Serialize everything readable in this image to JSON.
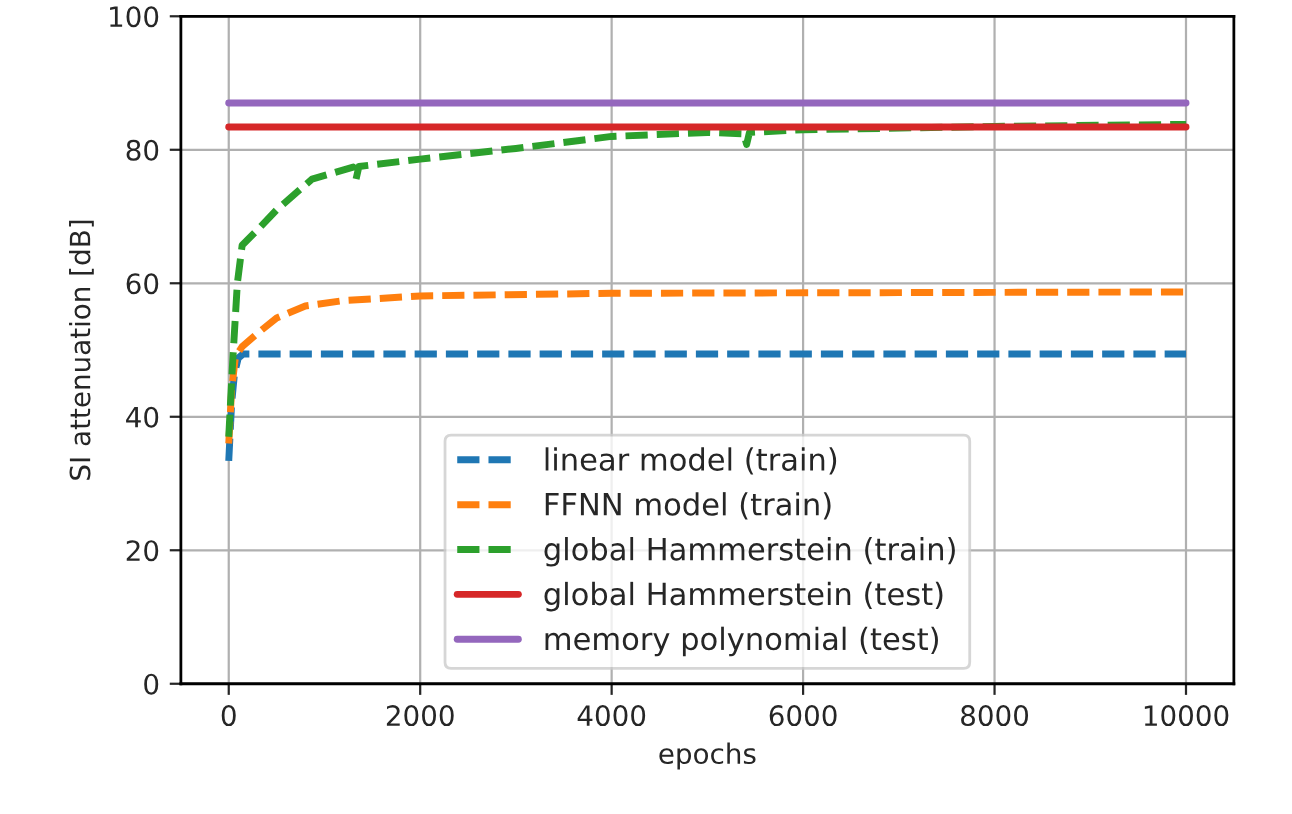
{
  "chart_data": {
    "type": "line",
    "xlabel": "epochs",
    "ylabel": "SI attenuation [dB]",
    "xlim": [
      -500,
      10500
    ],
    "xticks": [
      0,
      2000,
      4000,
      6000,
      8000,
      10000
    ],
    "ylim": [
      0,
      100
    ],
    "yticks": [
      0,
      20,
      40,
      60,
      80,
      100
    ],
    "grid": true,
    "legend": "bottom",
    "series": [
      {
        "name": "linear model (train)",
        "color": "#1f77b4",
        "line_style": "dashed",
        "x": [
          0,
          30,
          60,
          100,
          150,
          500,
          2000,
          6000,
          10000
        ],
        "values": [
          33.4,
          42,
          46.5,
          48.8,
          49.4,
          49.4,
          49.4,
          49.4,
          49.4
        ]
      },
      {
        "name": "FFNN model (train)",
        "color": "#ff7f0e",
        "line_style": "dashed",
        "x": [
          0,
          30,
          70,
          140,
          300,
          500,
          800,
          1200,
          2000,
          4000,
          7000,
          10000
        ],
        "values": [
          36,
          44,
          49,
          50.5,
          52.5,
          54.8,
          56.6,
          57.4,
          58.1,
          58.5,
          58.6,
          58.7
        ]
      },
      {
        "name": "global Hammerstein (train)",
        "color": "#2ca02c",
        "line_style": "dashed",
        "x": [
          0,
          40,
          90,
          140,
          300,
          500,
          870,
          1300,
          1330,
          1360,
          2000,
          3000,
          4000,
          5000,
          5380,
          5410,
          5440,
          6000,
          8000,
          10000
        ],
        "values": [
          37,
          48,
          60,
          65.7,
          68,
          71,
          75.6,
          77.4,
          75.6,
          77.5,
          78.6,
          80.2,
          82,
          82.6,
          82.4,
          80.8,
          82.6,
          83,
          83.5,
          83.8
        ]
      },
      {
        "name": "global Hammerstein (test)",
        "color": "#d62728",
        "line_style": "solid",
        "x": [
          0,
          10000
        ],
        "values": [
          83.4,
          83.4
        ]
      },
      {
        "name": "memory polynomial (test)",
        "color": "#9467bd",
        "line_style": "solid",
        "x": [
          0,
          10000
        ],
        "values": [
          87,
          87
        ]
      }
    ]
  }
}
